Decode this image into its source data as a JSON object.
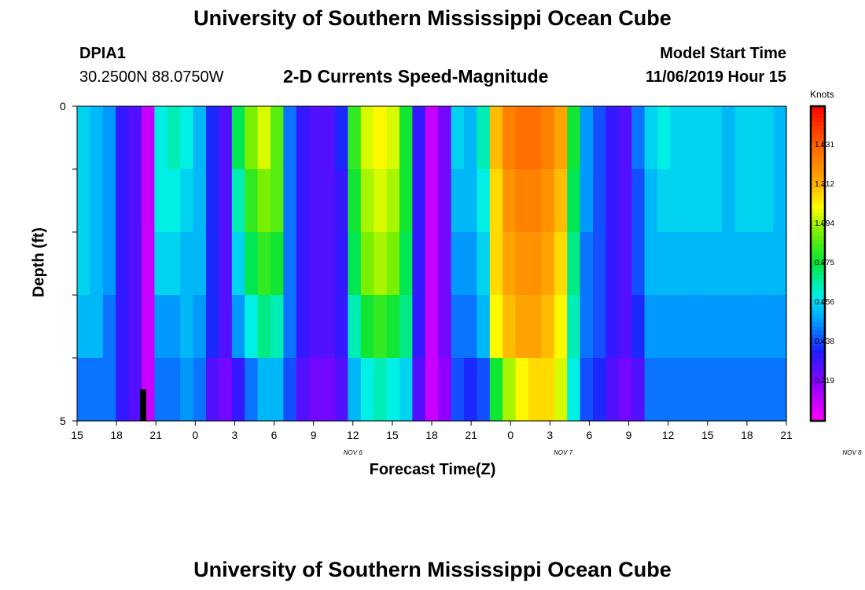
{
  "title_top": "University of Southern Mississippi Ocean Cube",
  "title_bottom": "University of Southern Mississippi Ocean Cube",
  "station": {
    "id": "DPIA1",
    "coords": "30.2500N 88.0750W"
  },
  "model": {
    "label": "Model Start Time",
    "value": "11/06/2019 Hour 15"
  },
  "chart_data": {
    "type": "heatmap",
    "title": "2-D Currents Speed-Magnitude",
    "xlabel": "Forecast Time(Z)",
    "ylabel": "Depth (ft)",
    "ylim": [
      0,
      5
    ],
    "y_tick_labels": [
      "0",
      "5"
    ],
    "x_tick_labels": [
      "15",
      "18",
      "21",
      "0",
      "3",
      "6",
      "9",
      "12",
      "15",
      "18",
      "21",
      "0",
      "3",
      "6",
      "9",
      "12",
      "15",
      "18",
      "21"
    ],
    "day_labels": [
      {
        "text": "NOV  6",
        "hour": 21
      },
      {
        "text": "NOV  7",
        "hour": 37
      },
      {
        "text": "NOV  8",
        "hour": 59
      }
    ],
    "colorbar": {
      "label": "Knots",
      "ticks": [
        "1.531",
        "1.312",
        "1.094",
        "0.875",
        "0.656",
        "0.438",
        "0.219"
      ],
      "range": [
        0.0,
        1.75
      ]
    },
    "time_hours": {
      "start": 0,
      "end": 54,
      "step": 1
    },
    "depth_layers": 5,
    "speed_knots": [
      [
        0.65,
        0.6,
        0.55,
        0.35,
        0.3,
        0.1,
        0.7,
        0.75,
        0.7,
        0.6,
        0.4,
        0.3,
        0.85,
        1.05,
        1.15,
        1.0,
        0.5,
        0.35,
        0.3,
        0.3,
        0.4,
        0.95,
        1.15,
        1.2,
        1.15,
        0.9,
        0.35,
        0.1,
        0.25,
        0.65,
        0.6,
        0.75,
        1.3,
        1.45,
        1.5,
        1.5,
        1.45,
        1.35,
        0.9,
        0.55,
        0.45,
        0.35,
        0.3,
        0.5,
        0.65,
        0.7,
        0.65,
        0.65,
        0.65,
        0.65,
        0.6,
        0.65,
        0.65,
        0.65,
        0.6
      ],
      [
        0.65,
        0.6,
        0.55,
        0.35,
        0.3,
        0.1,
        0.7,
        0.7,
        0.65,
        0.6,
        0.4,
        0.3,
        0.75,
        0.95,
        1.05,
        1.0,
        0.5,
        0.35,
        0.3,
        0.3,
        0.35,
        0.9,
        1.1,
        1.15,
        1.1,
        0.9,
        0.35,
        0.1,
        0.25,
        0.6,
        0.6,
        0.7,
        1.25,
        1.4,
        1.45,
        1.45,
        1.4,
        1.3,
        0.85,
        0.55,
        0.45,
        0.35,
        0.3,
        0.45,
        0.6,
        0.65,
        0.65,
        0.65,
        0.65,
        0.65,
        0.6,
        0.65,
        0.65,
        0.65,
        0.6
      ],
      [
        0.65,
        0.6,
        0.55,
        0.35,
        0.3,
        0.1,
        0.65,
        0.65,
        0.6,
        0.6,
        0.4,
        0.3,
        0.65,
        0.85,
        0.95,
        0.9,
        0.5,
        0.35,
        0.3,
        0.3,
        0.35,
        0.85,
        1.05,
        1.1,
        1.05,
        0.85,
        0.35,
        0.1,
        0.25,
        0.55,
        0.55,
        0.65,
        1.25,
        1.35,
        1.4,
        1.4,
        1.35,
        1.25,
        0.8,
        0.5,
        0.45,
        0.35,
        0.3,
        0.45,
        0.6,
        0.6,
        0.6,
        0.6,
        0.6,
        0.6,
        0.6,
        0.6,
        0.6,
        0.6,
        0.6
      ],
      [
        0.6,
        0.6,
        0.5,
        0.35,
        0.3,
        0.1,
        0.55,
        0.55,
        0.6,
        0.55,
        0.4,
        0.3,
        0.55,
        0.7,
        0.8,
        0.75,
        0.5,
        0.35,
        0.3,
        0.3,
        0.35,
        0.75,
        0.9,
        0.95,
        0.9,
        0.8,
        0.35,
        0.1,
        0.25,
        0.5,
        0.5,
        0.6,
        1.2,
        1.3,
        1.35,
        1.35,
        1.3,
        1.2,
        0.75,
        0.5,
        0.45,
        0.35,
        0.3,
        0.4,
        0.55,
        0.55,
        0.55,
        0.55,
        0.55,
        0.55,
        0.55,
        0.55,
        0.55,
        0.55,
        0.55
      ],
      [
        0.5,
        0.5,
        0.5,
        0.35,
        0.3,
        0.1,
        0.5,
        0.5,
        0.55,
        0.5,
        0.3,
        0.25,
        0.35,
        0.5,
        0.6,
        0.6,
        0.45,
        0.3,
        0.25,
        0.25,
        0.3,
        0.6,
        0.7,
        0.75,
        0.7,
        0.65,
        0.3,
        0.1,
        0.2,
        0.45,
        0.4,
        0.45,
        0.9,
        1.1,
        1.2,
        1.25,
        1.25,
        1.15,
        0.7,
        0.45,
        0.4,
        0.3,
        0.25,
        0.3,
        0.5,
        0.5,
        0.5,
        0.5,
        0.5,
        0.5,
        0.5,
        0.5,
        0.5,
        0.5,
        0.5
      ]
    ]
  }
}
